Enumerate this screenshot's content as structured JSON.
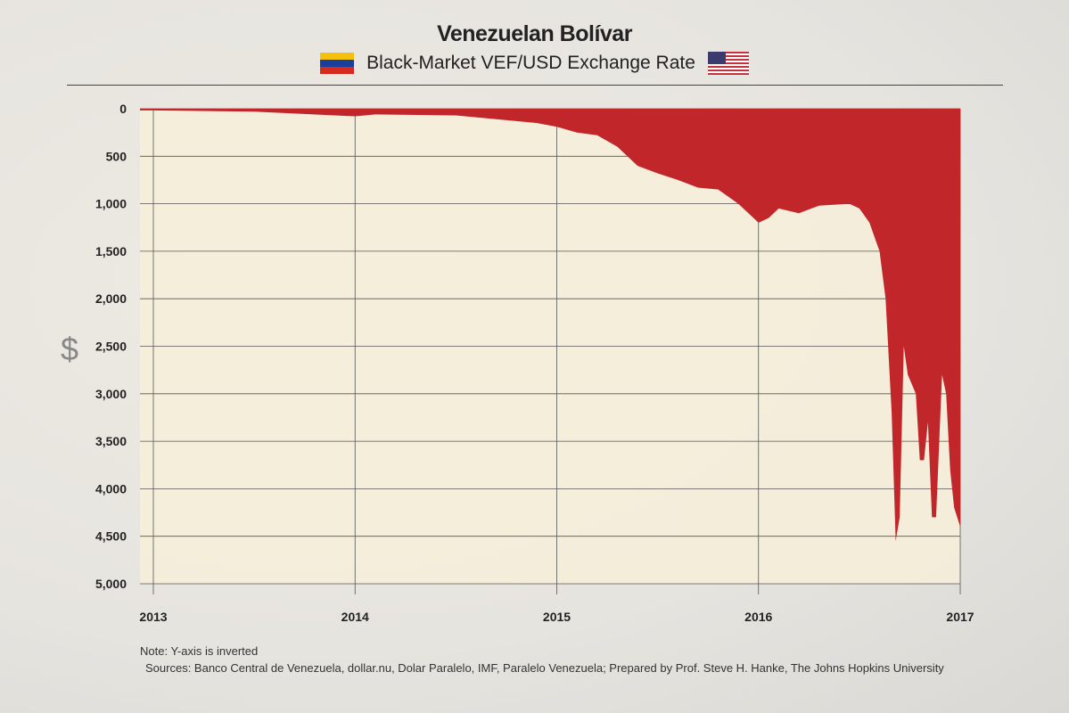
{
  "chart_data": {
    "type": "area",
    "title": "Venezuelan Bolívar",
    "subtitle": "Black-Market VEF/USD Exchange Rate",
    "ylabel": "$",
    "xlabel": "",
    "y_inverted": true,
    "ylim": [
      0,
      5000
    ],
    "xlim": [
      2013,
      2017
    ],
    "grid": true,
    "y_ticks": [
      0,
      500,
      1000,
      1500,
      2000,
      2500,
      3000,
      3500,
      4000,
      4500,
      5000
    ],
    "y_tick_labels": [
      "0",
      "500",
      "1,000",
      "1,500",
      "2,000",
      "2,500",
      "3,000",
      "3,500",
      "4,000",
      "4,500",
      "5,000"
    ],
    "x_ticks": [
      2013,
      2014,
      2015,
      2016,
      2017
    ],
    "x_tick_labels": [
      "2013",
      "2014",
      "2015",
      "2016",
      "2017"
    ],
    "series": [
      {
        "name": "VEF/USD",
        "color": "#c0262a",
        "x": [
          2013.0,
          2013.5,
          2013.9,
          2014.0,
          2014.1,
          2014.5,
          2014.9,
          2015.0,
          2015.1,
          2015.2,
          2015.3,
          2015.4,
          2015.5,
          2015.6,
          2015.7,
          2015.8,
          2015.9,
          2016.0,
          2016.05,
          2016.1,
          2016.2,
          2016.3,
          2016.45,
          2016.5,
          2016.55,
          2016.6,
          2016.63,
          2016.66,
          2016.68,
          2016.7,
          2016.72,
          2016.74,
          2016.78,
          2016.8,
          2016.82,
          2016.84,
          2016.86,
          2016.88,
          2016.91,
          2016.93,
          2016.95,
          2016.97,
          2017.0
        ],
        "values": [
          18,
          30,
          70,
          80,
          60,
          70,
          150,
          190,
          250,
          280,
          400,
          600,
          680,
          750,
          830,
          850,
          1000,
          1200,
          1150,
          1050,
          1100,
          1020,
          1000,
          1050,
          1200,
          1500,
          2000,
          3200,
          4550,
          4300,
          2500,
          2800,
          3000,
          3700,
          3700,
          3300,
          4300,
          4300,
          2800,
          3000,
          3800,
          4200,
          4400
        ]
      }
    ]
  },
  "footer": {
    "note": "Note: Y-axis is inverted",
    "sources": "Sources: Banco Central de Venezuela, dollar.nu, Dolar Paralelo, IMF, Paralelo Venezuela; Prepared by Prof. Steve H. Hanke, The Johns Hopkins University"
  }
}
